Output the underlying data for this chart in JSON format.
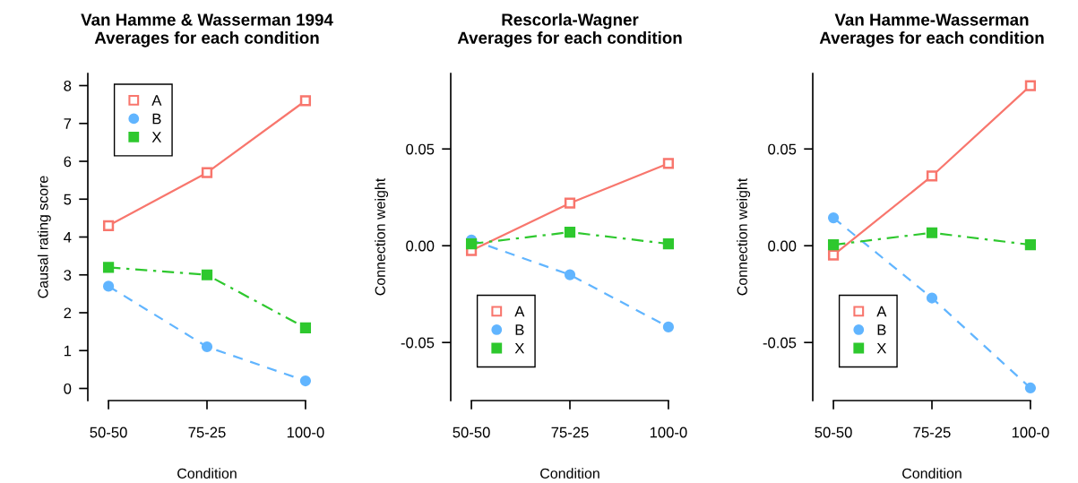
{
  "chart_data": [
    {
      "type": "line",
      "title": "Van Hamme & Wasserman 1994\nAverages for each condition",
      "xlabel": "Condition",
      "ylabel": "Causal rating score",
      "categories": [
        "50-50",
        "75-25",
        "100-0"
      ],
      "ylim": [
        -0.32,
        8.32
      ],
      "yticks": [
        0,
        1,
        2,
        3,
        4,
        5,
        6,
        7,
        8
      ],
      "legend": "top left",
      "grid": false,
      "series": [
        {
          "name": "A",
          "color": "#f8766d",
          "values": [
            4.3,
            5.7,
            7.6
          ],
          "marker": "square",
          "line_style": "solid"
        },
        {
          "name": "B",
          "color": "#61b5ff",
          "values": [
            2.7,
            1.1,
            0.2
          ],
          "marker": "circle",
          "line_style": "dashed"
        },
        {
          "name": "X",
          "color": "#2ec82e",
          "values": [
            3.2,
            3.0,
            1.6
          ],
          "marker": "square",
          "line_style": "dashdot"
        }
      ]
    },
    {
      "type": "line",
      "title": "Rescorla-Wagner\nAverages for each condition",
      "xlabel": "Condition",
      "ylabel": "Connection weight",
      "categories": [
        "50-50",
        "75-25",
        "100-0"
      ],
      "ylim": [
        -0.08,
        0.089
      ],
      "yticks": [
        {
          "value": -0.05,
          "label": "-0.05"
        },
        {
          "value": 0,
          "label": "0.00"
        },
        {
          "value": 0.05,
          "label": "0.05"
        }
      ],
      "legend": "bottom left",
      "grid": false,
      "series": [
        {
          "name": "A",
          "color": "#f8766d",
          "values": [
            -0.0025,
            0.022,
            0.0425
          ],
          "marker": "square",
          "line_style": "solid"
        },
        {
          "name": "B",
          "color": "#61b5ff",
          "values": [
            0.003,
            -0.015,
            -0.042
          ],
          "marker": "circle",
          "line_style": "dashed"
        },
        {
          "name": "X",
          "color": "#2ec82e",
          "values": [
            0.001,
            0.007,
            0.001
          ],
          "marker": "square",
          "line_style": "dashdot"
        }
      ]
    },
    {
      "type": "line",
      "title": "Van Hamme-Wasserman\nAverages for each condition",
      "xlabel": "Condition",
      "ylabel": "Connection weight",
      "categories": [
        "50-50",
        "75-25",
        "100-0"
      ],
      "ylim": [
        -0.08,
        0.089
      ],
      "yticks": [
        {
          "value": -0.05,
          "label": "-0.05"
        },
        {
          "value": 0,
          "label": "0.00"
        },
        {
          "value": 0.05,
          "label": "0.05"
        }
      ],
      "legend": "bottom left",
      "grid": false,
      "series": [
        {
          "name": "A",
          "color": "#f8766d",
          "values": [
            -0.0048,
            0.036,
            0.0827
          ],
          "marker": "square",
          "line_style": "solid"
        },
        {
          "name": "B",
          "color": "#61b5ff",
          "values": [
            0.0144,
            -0.027,
            -0.0735
          ],
          "marker": "circle",
          "line_style": "dashed"
        },
        {
          "name": "X",
          "color": "#2ec82e",
          "values": [
            0.0005,
            0.0067,
            0.0005
          ],
          "marker": "square",
          "line_style": "dashdot"
        }
      ]
    }
  ]
}
